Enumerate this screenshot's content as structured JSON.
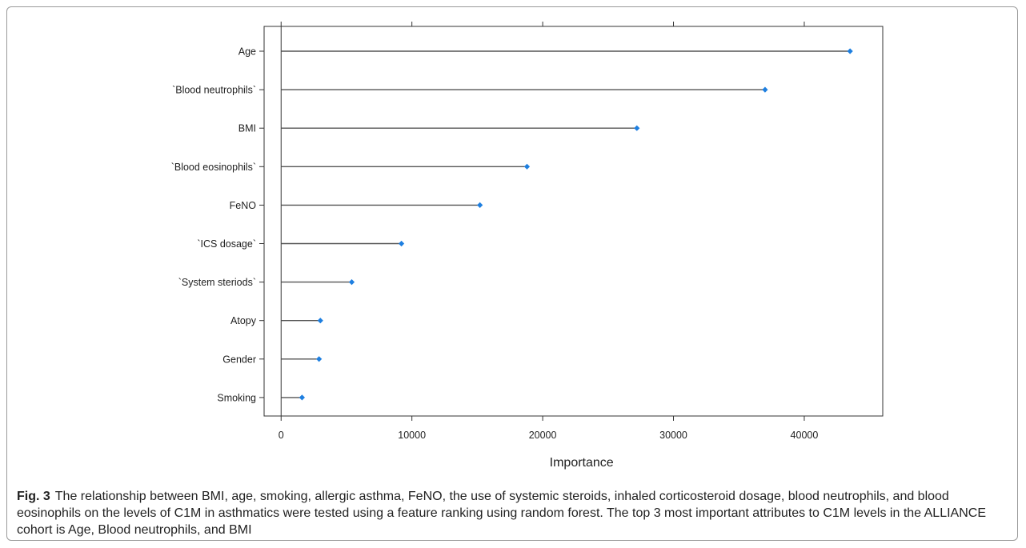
{
  "chart_data": {
    "type": "lollipop",
    "categories": [
      "Age",
      "`Blood neutrophils`",
      "BMI",
      "`Blood eosinophils`",
      "FeNO",
      "`ICS dosage`",
      "`System steriods`",
      "Atopy",
      "Gender",
      "Smoking"
    ],
    "values": [
      43500,
      37000,
      27200,
      18800,
      15200,
      9200,
      5400,
      3000,
      2900,
      1600
    ],
    "xlabel": "Importance",
    "xticks": [
      0,
      10000,
      20000,
      30000,
      40000
    ],
    "xlim": [
      -1300,
      46000
    ],
    "grid": false,
    "colors": {
      "point": "#1e7fe0",
      "stem": "#555555",
      "axis": "#333333"
    }
  },
  "caption": {
    "label": "Fig. 3",
    "text": "The relationship between BMI, age, smoking, allergic asthma, FeNO, the use of systemic steroids, inhaled corticosteroid dosage, blood neutrophils, and blood eosinophils on the levels of C1M in asthmatics were tested using a feature ranking using random forest. The top 3 most important attributes to C1M levels in the ALLIANCE cohort is Age, Blood neutrophils, and BMI"
  }
}
